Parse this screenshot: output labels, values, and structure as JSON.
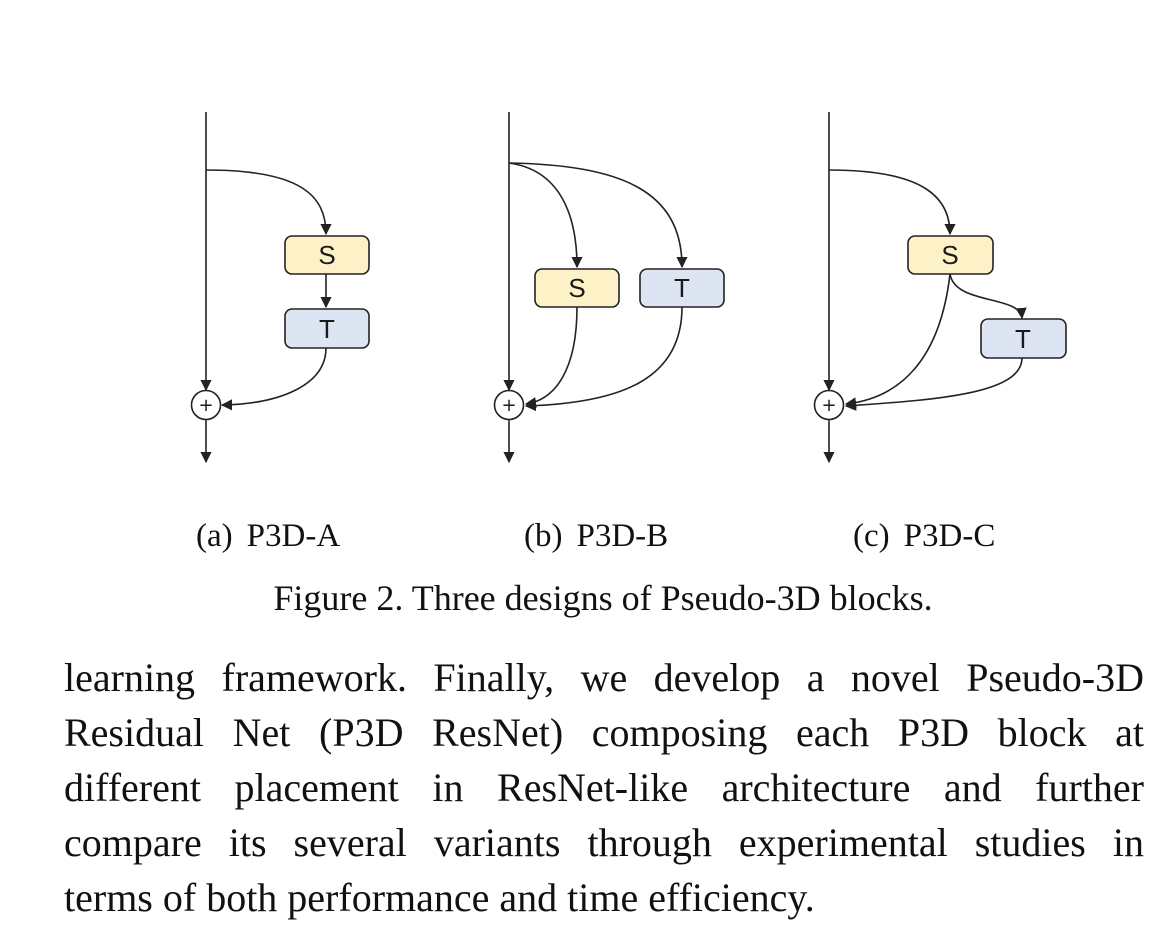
{
  "figure": {
    "panels": [
      {
        "id": "a",
        "label": "(a)",
        "name": "P3D-A",
        "boxes": [
          "S",
          "T"
        ]
      },
      {
        "id": "b",
        "label": "(b)",
        "name": "P3D-B",
        "boxes": [
          "S",
          "T"
        ]
      },
      {
        "id": "c",
        "label": "(c)",
        "name": "P3D-C",
        "boxes": [
          "S",
          "T"
        ]
      }
    ],
    "sum_symbol": "+",
    "colors": {
      "S": "#fdf1c8",
      "T": "#dde4f2",
      "stroke": "#222222"
    },
    "caption": "Figure 2. Three designs of Pseudo-3D blocks."
  },
  "paragraph": {
    "lines": [
      "learning framework. Finally, we develop a novel Pseudo-3D",
      "Residual Net (P3D ResNet) composing each P3D block at",
      "different placement in ResNet-like architecture and further",
      "compare its several variants through experimental studies in",
      "terms of both performance and time efficiency."
    ]
  }
}
